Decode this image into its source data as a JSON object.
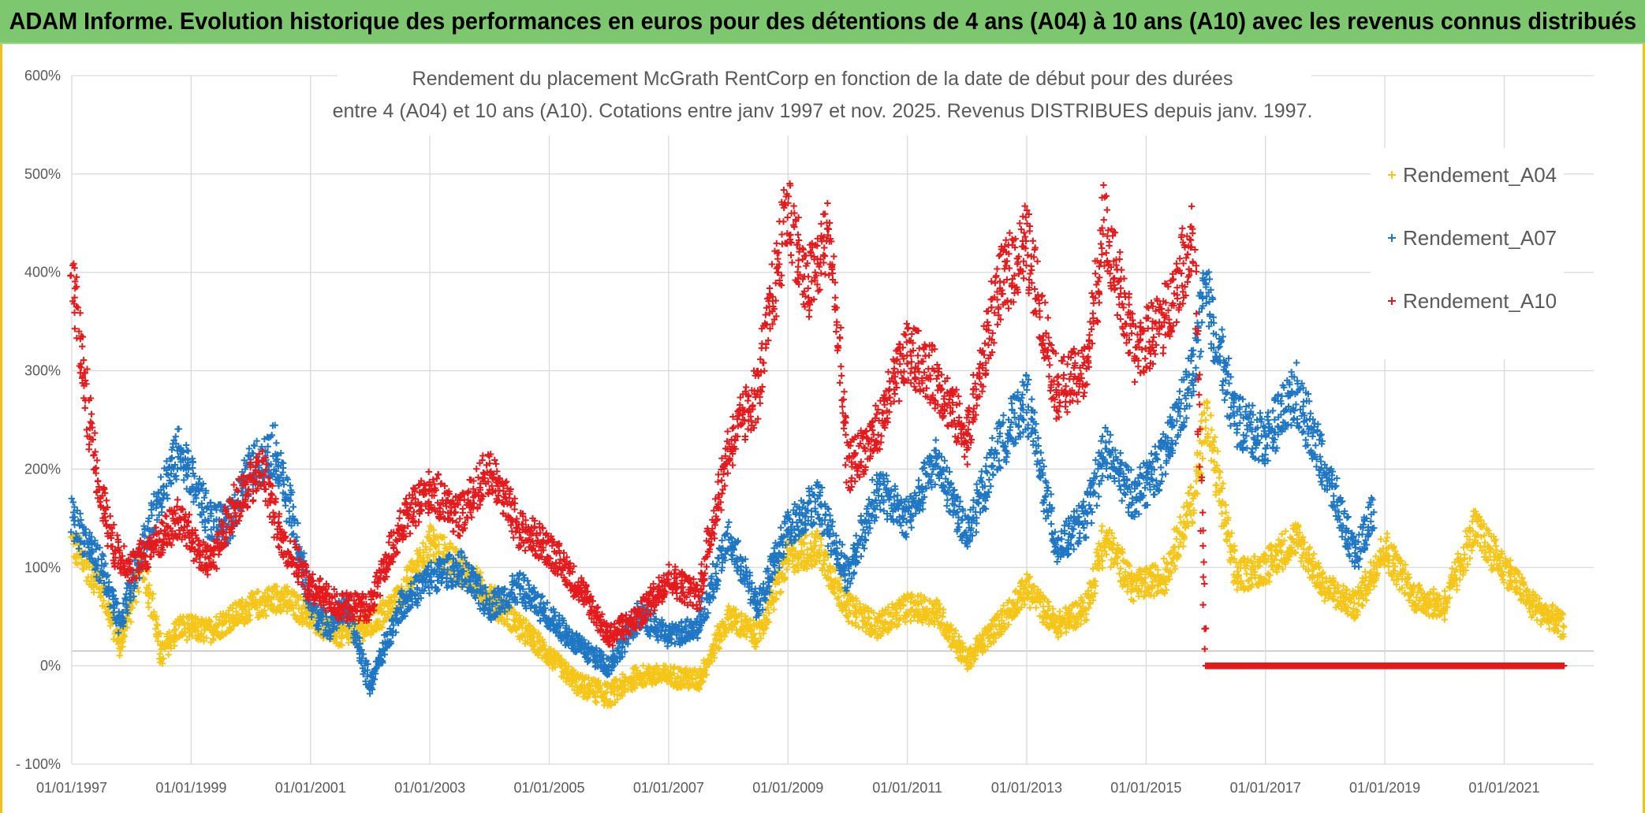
{
  "banner": {
    "text": "ADAM Informe. Evolution historique des performances en euros pour des détentions de 4 ans (A04) à 10 ans (A10) avec les revenus connus distribués"
  },
  "chart_data": {
    "type": "scatter",
    "title_line1": "Rendement du placement McGrath RentCorp en fonction de la date de début pour des durées",
    "title_line2": "entre 4 (A04) et 10 ans (A10). Cotations entre janv 1997 et nov. 2025. Revenus DISTRIBUES depuis janv. 1997.",
    "xlabel": "",
    "ylabel": "",
    "x_range": [
      1997.0,
      2022.5
    ],
    "ylim": [
      -100,
      600
    ],
    "x_ticks": [
      1997,
      1999,
      2001,
      2003,
      2005,
      2007,
      2009,
      2011,
      2013,
      2015,
      2017,
      2019,
      2021
    ],
    "x_tick_labels": [
      "01/01/1997",
      "01/01/1999",
      "01/01/2001",
      "01/01/2003",
      "01/01/2005",
      "01/01/2007",
      "01/01/2009",
      "01/01/2011",
      "01/01/2013",
      "01/01/2015",
      "01/01/2017",
      "01/01/2019",
      "01/01/2021"
    ],
    "y_ticks": [
      -100,
      0,
      100,
      200,
      300,
      400,
      500,
      600
    ],
    "y_tick_labels": [
      "- 100%",
      "0%",
      "100%",
      "200%",
      "300%",
      "400%",
      "500%",
      "600%"
    ],
    "grid": true,
    "legend_position": "right",
    "series": [
      {
        "name": "Rendement_A04",
        "color": "#f5c518",
        "x": [
          1997.0,
          1997.5,
          1997.8,
          1998.2,
          1998.5,
          1998.8,
          1999.3,
          2000.0,
          2000.5,
          2001.0,
          2001.5,
          2002.0,
          2002.5,
          2003.0,
          2003.5,
          2004.0,
          2004.5,
          2005.0,
          2005.5,
          2006.0,
          2006.5,
          2007.0,
          2007.5,
          2008.0,
          2008.5,
          2009.0,
          2009.5,
          2010.0,
          2010.5,
          2011.0,
          2011.5,
          2012.0,
          2012.5,
          2013.0,
          2013.5,
          2014.0,
          2014.3,
          2014.8,
          2015.3,
          2015.8,
          2016.0,
          2016.5,
          2017.0,
          2017.5,
          2018.0,
          2018.5,
          2019.0,
          2019.5,
          2020.0,
          2020.5,
          2021.0,
          2021.5,
          2022.0
        ],
        "values": [
          125,
          80,
          20,
          110,
          10,
          40,
          35,
          60,
          70,
          50,
          30,
          40,
          70,
          125,
          100,
          70,
          40,
          10,
          -20,
          -30,
          -10,
          -10,
          -15,
          50,
          30,
          110,
          120,
          60,
          40,
          60,
          55,
          5,
          40,
          80,
          40,
          60,
          130,
          80,
          90,
          170,
          255,
          90,
          100,
          130,
          80,
          60,
          120,
          70,
          60,
          140,
          100,
          60,
          40
        ]
      },
      {
        "name": "Rendement_A07",
        "color": "#1f77c4",
        "x": [
          1997.0,
          1997.5,
          1997.8,
          1998.2,
          1998.5,
          1998.8,
          1999.3,
          1999.6,
          2000.0,
          2000.4,
          2000.7,
          2001.0,
          2001.3,
          2001.6,
          2002.0,
          2002.5,
          2003.0,
          2003.5,
          2004.0,
          2004.5,
          2005.0,
          2005.5,
          2006.0,
          2006.5,
          2007.0,
          2007.5,
          2008.0,
          2008.5,
          2009.0,
          2009.5,
          2010.0,
          2010.5,
          2011.0,
          2011.5,
          2012.0,
          2012.5,
          2013.0,
          2013.5,
          2014.0,
          2014.3,
          2014.8,
          2015.3,
          2015.8,
          2016.0,
          2016.5,
          2017.0,
          2017.5,
          2018.0,
          2018.5,
          2018.8
        ],
        "values": [
          150,
          100,
          40,
          120,
          180,
          220,
          150,
          140,
          200,
          220,
          150,
          60,
          40,
          60,
          -20,
          60,
          90,
          100,
          60,
          80,
          50,
          20,
          0,
          50,
          30,
          40,
          130,
          60,
          140,
          170,
          90,
          180,
          150,
          210,
          130,
          220,
          270,
          120,
          150,
          220,
          170,
          210,
          300,
          380,
          250,
          230,
          280,
          200,
          110,
          160
        ]
      },
      {
        "name": "Rendement_A10",
        "color": "#e41a1c",
        "x": [
          1997.0,
          1997.2,
          1997.4,
          1997.7,
          1998.0,
          1998.5,
          1998.8,
          1999.3,
          1999.7,
          2000.2,
          2000.5,
          2001.0,
          2001.5,
          2002.0,
          2002.5,
          2003.0,
          2003.5,
          2004.0,
          2004.5,
          2005.0,
          2005.5,
          2006.0,
          2006.5,
          2007.0,
          2007.5,
          2008.0,
          2008.5,
          2009.0,
          2009.3,
          2009.7,
          2010.0,
          2010.5,
          2011.0,
          2011.5,
          2012.0,
          2012.5,
          2013.0,
          2013.5,
          2014.0,
          2014.3,
          2014.8,
          2015.3,
          2015.8,
          2016.0,
          2016.5,
          2017.0,
          2018.0,
          2019.0,
          2020.0,
          2021.0,
          2022.0
        ],
        "values": [
          400,
          300,
          200,
          120,
          100,
          130,
          150,
          100,
          160,
          200,
          130,
          80,
          60,
          60,
          140,
          180,
          150,
          200,
          140,
          120,
          80,
          30,
          50,
          90,
          70,
          220,
          280,
          470,
          380,
          440,
          200,
          240,
          320,
          290,
          230,
          380,
          430,
          280,
          300,
          450,
          320,
          350,
          440,
          0,
          0,
          0,
          0,
          0,
          0,
          0,
          0
        ]
      }
    ]
  }
}
